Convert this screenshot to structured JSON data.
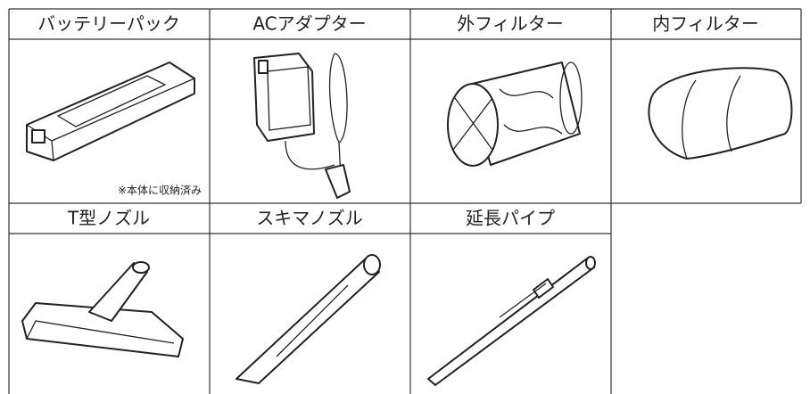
{
  "items": [
    {
      "label": "バッテリーパック",
      "note": "※本体に収納済み"
    },
    {
      "label": "ACアダプター"
    },
    {
      "label": "外フィルター"
    },
    {
      "label": "内フィルター"
    },
    {
      "label": "T型ノズル"
    },
    {
      "label": "スキマノズル"
    },
    {
      "label": "延長パイプ"
    }
  ]
}
